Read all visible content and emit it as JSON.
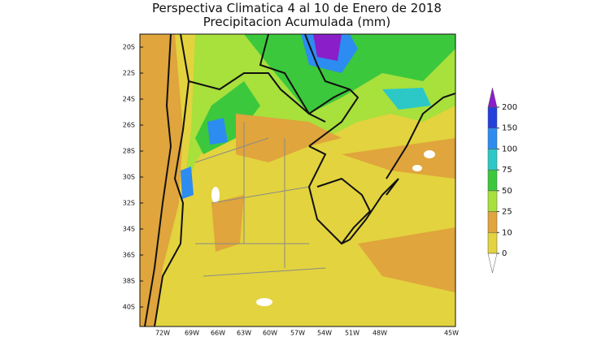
{
  "title": "Perspectiva Climatica 4 al 10 de Enero de 2018",
  "subtitle": "Precipitacion Acumulada (mm)",
  "lat_labels": [
    "20S",
    "22S",
    "24S",
    "26S",
    "28S",
    "30S",
    "32S",
    "34S",
    "36S",
    "38S",
    "40S"
  ],
  "lon_labels": [
    "72W",
    "69W",
    "66W",
    "63W",
    "60W",
    "57W",
    "54W",
    "51W",
    "48W",
    "45W"
  ],
  "colorbar": {
    "levels": [
      0,
      10,
      25,
      50,
      75,
      100,
      150,
      200
    ],
    "colors": [
      "#ffffff",
      "#e3d33e",
      "#e0a53c",
      "#a8e03c",
      "#3cc83c",
      "#2cc8c8",
      "#2d8cf0",
      "#2340dc",
      "#8a1ec8"
    ]
  }
}
